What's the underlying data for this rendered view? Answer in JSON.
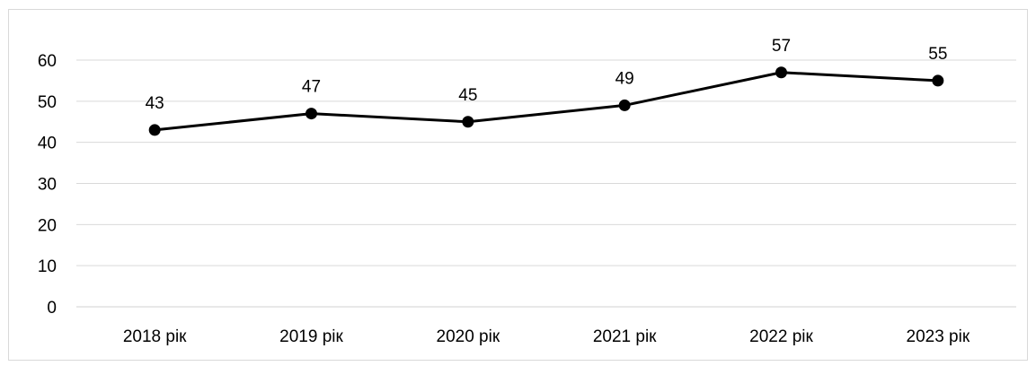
{
  "chart_data": {
    "type": "line",
    "title": "",
    "xlabel": "",
    "ylabel": "",
    "categories": [
      "2018 рік",
      "2019 рік",
      "2020 рік",
      "2021 рік",
      "2022 рік",
      "2023 рік"
    ],
    "series": [
      {
        "values": [
          43,
          47,
          45,
          49,
          57,
          55
        ],
        "data_labels": [
          "43",
          "47",
          "45",
          "49",
          "57",
          "55"
        ],
        "color": "#000000",
        "marker": "circle"
      }
    ],
    "ylim": [
      0,
      60
    ],
    "yticks": [
      0,
      10,
      20,
      30,
      40,
      50,
      60
    ],
    "ytick_labels": [
      "0",
      "10",
      "20",
      "30",
      "40",
      "50",
      "60"
    ],
    "grid": "horizontal",
    "legend": "none",
    "colors": {
      "line": "#000000",
      "grid": "#d9d9d9",
      "frame": "#d9d9d9"
    }
  }
}
